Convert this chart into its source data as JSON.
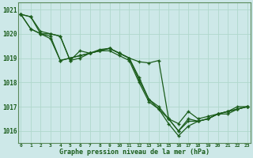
{
  "title": "Graphe pression niveau de la mer (hPa)",
  "bg_color": "#cde8e8",
  "grid_color": "#b0d8cc",
  "line_color": "#1a5c1a",
  "border_color": "#5a8a5a",
  "x_labels": [
    "0",
    "1",
    "2",
    "3",
    "4",
    "5",
    "6",
    "7",
    "8",
    "9",
    "10",
    "11",
    "12",
    "13",
    "14",
    "15",
    "16",
    "17",
    "18",
    "19",
    "20",
    "21",
    "22",
    "23"
  ],
  "series": [
    {
      "x": [
        0,
        1,
        2,
        3,
        4,
        5,
        6,
        7,
        8,
        9,
        10,
        11,
        12,
        13,
        14,
        15,
        16,
        17,
        18,
        19,
        20,
        21,
        22,
        23
      ],
      "y": [
        1020.8,
        1020.7,
        1020.0,
        1020.0,
        1019.9,
        1018.9,
        1019.3,
        1019.2,
        1019.3,
        1019.3,
        1019.1,
        1018.9,
        1018.0,
        1017.2,
        1016.9,
        1016.3,
        1015.8,
        1016.2,
        1016.4,
        1016.5,
        1016.7,
        1016.8,
        1016.9,
        1017.0
      ]
    },
    {
      "x": [
        0,
        1,
        2,
        3,
        4,
        5,
        6,
        7,
        8,
        9,
        10,
        11,
        12,
        13,
        14,
        15,
        16,
        17,
        18,
        19,
        20,
        21,
        22,
        23
      ],
      "y": [
        1020.8,
        1020.7,
        1020.1,
        1020.0,
        1019.9,
        1018.9,
        1019.0,
        1019.2,
        1019.3,
        1019.4,
        1019.2,
        1019.0,
        1018.1,
        1017.3,
        1016.9,
        1016.5,
        1016.0,
        1016.5,
        1016.4,
        1016.5,
        1016.7,
        1016.7,
        1016.9,
        1017.0
      ]
    },
    {
      "x": [
        0,
        1,
        2,
        3,
        4,
        5,
        6,
        7,
        8,
        9,
        10,
        11,
        12,
        13,
        14,
        15,
        16,
        17,
        18,
        19,
        20,
        21,
        22,
        23
      ],
      "y": [
        1020.8,
        1020.2,
        1020.0,
        1019.8,
        1018.9,
        1019.0,
        1019.1,
        1019.2,
        1019.3,
        1019.4,
        1019.2,
        1019.0,
        1018.2,
        1017.3,
        1017.0,
        1016.5,
        1016.0,
        1016.4,
        1016.4,
        1016.5,
        1016.7,
        1016.8,
        1016.9,
        1017.0
      ]
    },
    {
      "x": [
        0,
        1,
        2,
        3,
        4,
        5,
        6,
        7,
        8,
        9,
        10,
        11,
        12,
        13,
        14,
        15,
        16,
        17,
        18,
        19,
        20,
        21,
        22,
        23
      ],
      "y": [
        1020.8,
        1020.2,
        1020.0,
        1019.9,
        1018.9,
        1019.0,
        1019.1,
        1019.2,
        1019.35,
        1019.4,
        1019.2,
        1019.0,
        1018.85,
        1018.8,
        1018.9,
        1016.5,
        1016.3,
        1016.8,
        1016.5,
        1016.6,
        1016.7,
        1016.8,
        1017.0,
        1017.0
      ]
    }
  ],
  "ylim": [
    1015.5,
    1021.3
  ],
  "yticks": [
    1016,
    1017,
    1018,
    1019,
    1020,
    1021
  ],
  "xlim": [
    -0.3,
    23.3
  ],
  "marker": "+",
  "marker_size": 3.5,
  "linewidth": 0.9
}
